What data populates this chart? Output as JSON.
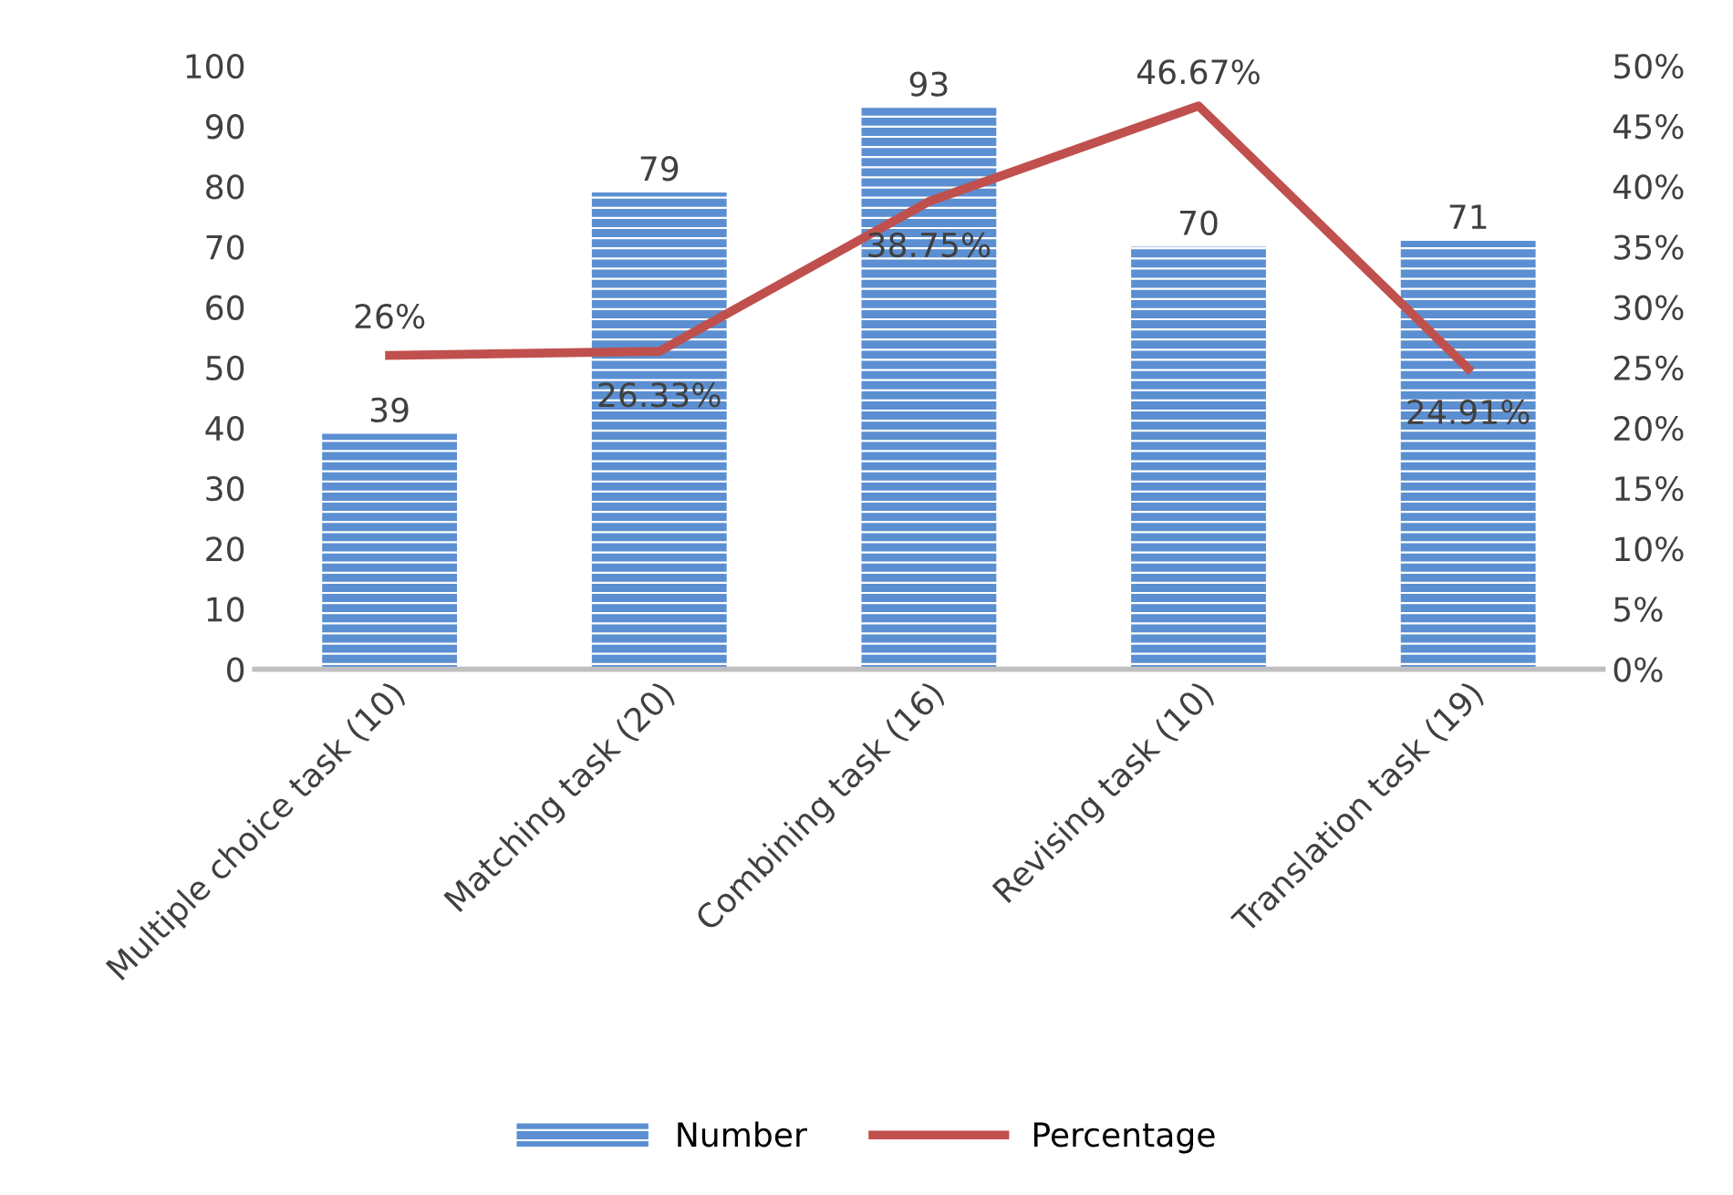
{
  "chart_data": {
    "type": "bar",
    "categories": [
      "Multiple choice task (10)",
      "Matching task (20)",
      "Combining task (16)",
      "Revising task (10)",
      "Translation task (19)"
    ],
    "series": [
      {
        "name": "Number",
        "color": "#5b8fd1",
        "values": [
          39,
          79,
          93,
          70,
          71
        ],
        "value_labels": [
          "39",
          "79",
          "93",
          "70",
          "71"
        ]
      },
      {
        "name": "Percentage",
        "type": "line",
        "axis": "y2",
        "color": "#c0504d",
        "values": [
          26,
          26.33,
          38.75,
          46.67,
          24.91
        ],
        "value_labels": [
          "26%",
          "26.33%",
          "38.75%",
          "46.67%",
          "24.91%"
        ]
      }
    ],
    "ylim": [
      0,
      100
    ],
    "yticks": [
      0,
      10,
      20,
      30,
      40,
      50,
      60,
      70,
      80,
      90,
      100
    ],
    "y2lim": [
      0,
      50
    ],
    "y2ticks": [
      {
        "value": 0,
        "label": "0%"
      },
      {
        "value": 5,
        "label": "5%"
      },
      {
        "value": 10,
        "label": "10%"
      },
      {
        "value": 15,
        "label": "15%"
      },
      {
        "value": 20,
        "label": "20%"
      },
      {
        "value": 25,
        "label": "25%"
      },
      {
        "value": 30,
        "label": "30%"
      },
      {
        "value": 35,
        "label": "35%"
      },
      {
        "value": 40,
        "label": "40%"
      },
      {
        "value": 45,
        "label": "45%"
      },
      {
        "value": 50,
        "label": "50%"
      }
    ],
    "legend": "bottom",
    "grid": false,
    "marker": "none",
    "line_style": "solid"
  }
}
